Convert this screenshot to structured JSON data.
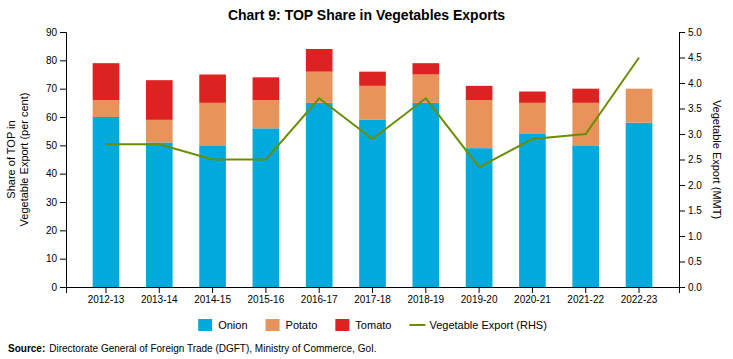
{
  "chart_data": {
    "type": "bar",
    "title": "Chart 9: TOP Share in Vegetables Exports",
    "categories": [
      "2012-13",
      "2013-14",
      "2014-15",
      "2015-16",
      "2016-17",
      "2017-18",
      "2018-19",
      "2019-20",
      "2020-21",
      "2021-22",
      "2022-23"
    ],
    "series": [
      {
        "name": "Onion",
        "type": "bar",
        "color": "#00AADD",
        "values": [
          60,
          51,
          50,
          56,
          65,
          59,
          65,
          49,
          54,
          50,
          58
        ]
      },
      {
        "name": "Potato",
        "type": "bar",
        "color": "#E8935A",
        "values": [
          6,
          8,
          15,
          10,
          11,
          12,
          10,
          17,
          11,
          15,
          12
        ]
      },
      {
        "name": "Tomato",
        "type": "bar",
        "color": "#DD2222",
        "values": [
          13,
          14,
          10,
          8,
          8,
          5,
          4,
          5,
          4,
          5,
          0
        ]
      },
      {
        "name": "Vegetable Export (RHS)",
        "type": "line",
        "axis": "y2",
        "color": "#6B8E00",
        "values": [
          2.8,
          2.8,
          2.5,
          2.5,
          3.7,
          2.9,
          3.7,
          2.35,
          2.9,
          3.0,
          4.5
        ]
      }
    ],
    "stacked": true,
    "ylabel": "Share of TOP in\nVegetable Export (per cent)",
    "y2label": "Vegetable Export (MMT)",
    "ylim": [
      0,
      90
    ],
    "yticks": [
      0,
      10,
      20,
      30,
      40,
      50,
      60,
      70,
      80,
      90
    ],
    "y2lim": [
      0,
      5.0
    ],
    "y2ticks": [
      {
        "value": 0,
        "label": "0.0"
      },
      0.5,
      {
        "value": 1,
        "label": "1.0"
      },
      1.5,
      {
        "value": 2,
        "label": "2.0"
      },
      2.5,
      {
        "value": 3,
        "label": "3.0"
      },
      3.5,
      {
        "value": 4,
        "label": "4.0"
      },
      4.5,
      {
        "value": 5,
        "label": "5.0"
      }
    ],
    "grid": false,
    "legend": "bottom",
    "annotations": [
      "Source:",
      "Directorate General of Foreign Trade (DGFT), Ministry of Commerce, GoI."
    ]
  }
}
